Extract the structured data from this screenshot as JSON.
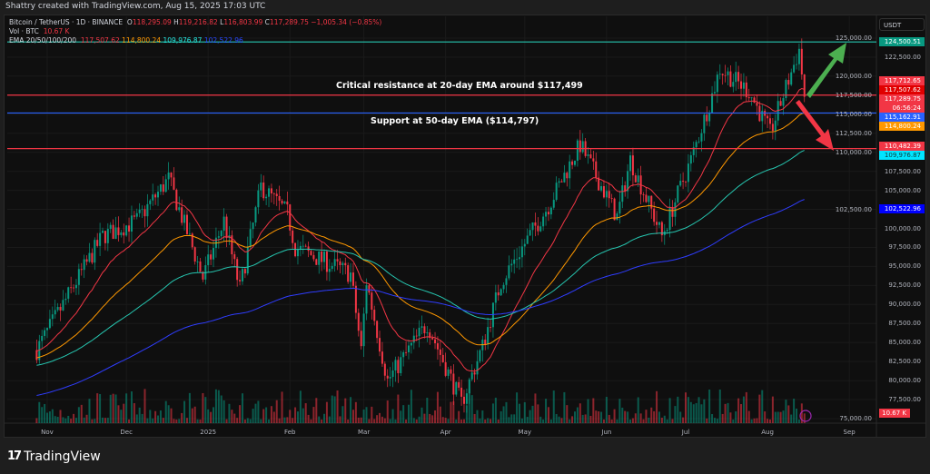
{
  "credit": "Shattry created with TradingView.com, Aug 15, 2025 17:03 UTC",
  "legend": {
    "symbol": "Bitcoin / TetherUS · 1D · BINANCE",
    "o_label": "O",
    "o": "118,295.09",
    "h_label": "H",
    "h": "119,216.82",
    "l_label": "L",
    "l": "116,803.99",
    "c_label": "C",
    "c": "117,289.75",
    "change": "−1,005.34 (−0.85%)",
    "vol_label": "Vol · BTC",
    "vol": "10.67 K",
    "ema_label": "EMA 20/50/100/200",
    "ema20": "117,507.62",
    "ema50": "114,800.24",
    "ema100": "109,976.87",
    "ema200": "102,522.96"
  },
  "currency": "USDT",
  "annotations": {
    "resistance": "Critical resistance at 20-day EMA around $117,499",
    "support": "Support at 50-day EMA ($114,797)"
  },
  "price_tags": [
    {
      "text": "124,500.51",
      "price": 124500.51,
      "color": "#089981"
    },
    {
      "text": "117,712.65",
      "price": 117712.65,
      "color": "#f23645"
    },
    {
      "text": "117,507.62",
      "price": 117507.62,
      "color": "#e00000"
    },
    {
      "text": "117,289.75",
      "price": 117289.75,
      "color": "#f23645"
    },
    {
      "text": "06:56:24",
      "price": 116289.75,
      "color": "#f23645"
    },
    {
      "text": "115,162.91",
      "price": 115162.91,
      "color": "#2962ff"
    },
    {
      "text": "114,800.24",
      "price": 114800.24,
      "color": "#ff9800"
    },
    {
      "text": "110,482.39",
      "price": 110482.39,
      "color": "#f23645"
    },
    {
      "text": "109,976.87",
      "price": 109976.87,
      "color": "#00e5ff"
    },
    {
      "text": "102,522.96",
      "price": 102522.96,
      "color": "#0000ff"
    }
  ],
  "volume_tag": {
    "text": "10.67 K",
    "color": "#f23645"
  },
  "footer": {
    "brand": "TradingView"
  },
  "colors": {
    "up": "#089981",
    "down": "#f23645",
    "ema20": "#f23645",
    "ema50": "#ff9800",
    "ema100": "#26c6b0",
    "ema200": "#2f3dff"
  },
  "chart_data": {
    "type": "candlestick",
    "symbol": "BTCUSDT",
    "interval": "1D",
    "y_axis_ticks": [
      "125,000.00",
      "122,500.00",
      "120,000.00",
      "117,500.00",
      "115,000.00",
      "112,500.00",
      "110,000.00",
      "107,500.00",
      "105,000.00",
      "102,500.00",
      "100,000.00",
      "97,500.00",
      "95,000.00",
      "92,500.00",
      "90,000.00",
      "87,500.00",
      "85,000.00",
      "82,500.00",
      "80,000.00",
      "77,500.00",
      "75,000.00"
    ],
    "ylim": [
      75000,
      125000
    ],
    "x_axis_ticks": [
      {
        "label": "Nov",
        "date": "2024-11-01"
      },
      {
        "label": "Dec",
        "date": "2024-12-01"
      },
      {
        "label": "2025",
        "date": "2025-01-01"
      },
      {
        "label": "Feb",
        "date": "2025-02-01"
      },
      {
        "label": "Mar",
        "date": "2025-03-01"
      },
      {
        "label": "Apr",
        "date": "2025-04-01"
      },
      {
        "label": "May",
        "date": "2025-05-01"
      },
      {
        "label": "Jun",
        "date": "2025-06-01"
      },
      {
        "label": "Jul",
        "date": "2025-07-01"
      },
      {
        "label": "Aug",
        "date": "2025-08-01"
      },
      {
        "label": "Sep",
        "date": "2025-09-01"
      }
    ],
    "approx_close": [
      [
        "2024-10-28",
        84000
      ],
      [
        "2024-11-12",
        93000
      ],
      [
        "2024-11-22",
        99000
      ],
      [
        "2024-12-05",
        101000
      ],
      [
        "2024-12-17",
        106500
      ],
      [
        "2024-12-30",
        93500
      ],
      [
        "2025-01-07",
        101000
      ],
      [
        "2025-01-13",
        92000
      ],
      [
        "2025-01-21",
        105500
      ],
      [
        "2025-01-31",
        102000
      ],
      [
        "2025-02-03",
        97500
      ],
      [
        "2025-02-24",
        94000
      ],
      [
        "2025-02-28",
        84000
      ],
      [
        "2025-03-02",
        93000
      ],
      [
        "2025-03-10",
        80000
      ],
      [
        "2025-03-25",
        87500
      ],
      [
        "2025-04-07",
        77000
      ],
      [
        "2025-04-15",
        84500
      ],
      [
        "2025-04-22",
        93000
      ],
      [
        "2025-05-10",
        103000
      ],
      [
        "2025-05-22",
        111000
      ],
      [
        "2025-06-05",
        101500
      ],
      [
        "2025-06-10",
        109000
      ],
      [
        "2025-06-22",
        99000
      ],
      [
        "2025-07-03",
        109000
      ],
      [
        "2025-07-11",
        117500
      ],
      [
        "2025-07-14",
        121000
      ],
      [
        "2025-07-25",
        118000
      ],
      [
        "2025-08-02",
        112500
      ],
      [
        "2025-08-13",
        123500
      ],
      [
        "2025-08-15",
        117289.75
      ]
    ],
    "horizontal_lines": [
      {
        "price": 124500.51,
        "color": "#26c6b0"
      },
      {
        "price": 117507.62,
        "color": "#f23645"
      },
      {
        "price": 115162.91,
        "color": "#2962ff"
      },
      {
        "price": 110482.39,
        "color": "#f23645"
      }
    ],
    "arrows": [
      {
        "direction": "up",
        "color": "#4caf50"
      },
      {
        "direction": "down",
        "color": "#f23645"
      }
    ]
  }
}
